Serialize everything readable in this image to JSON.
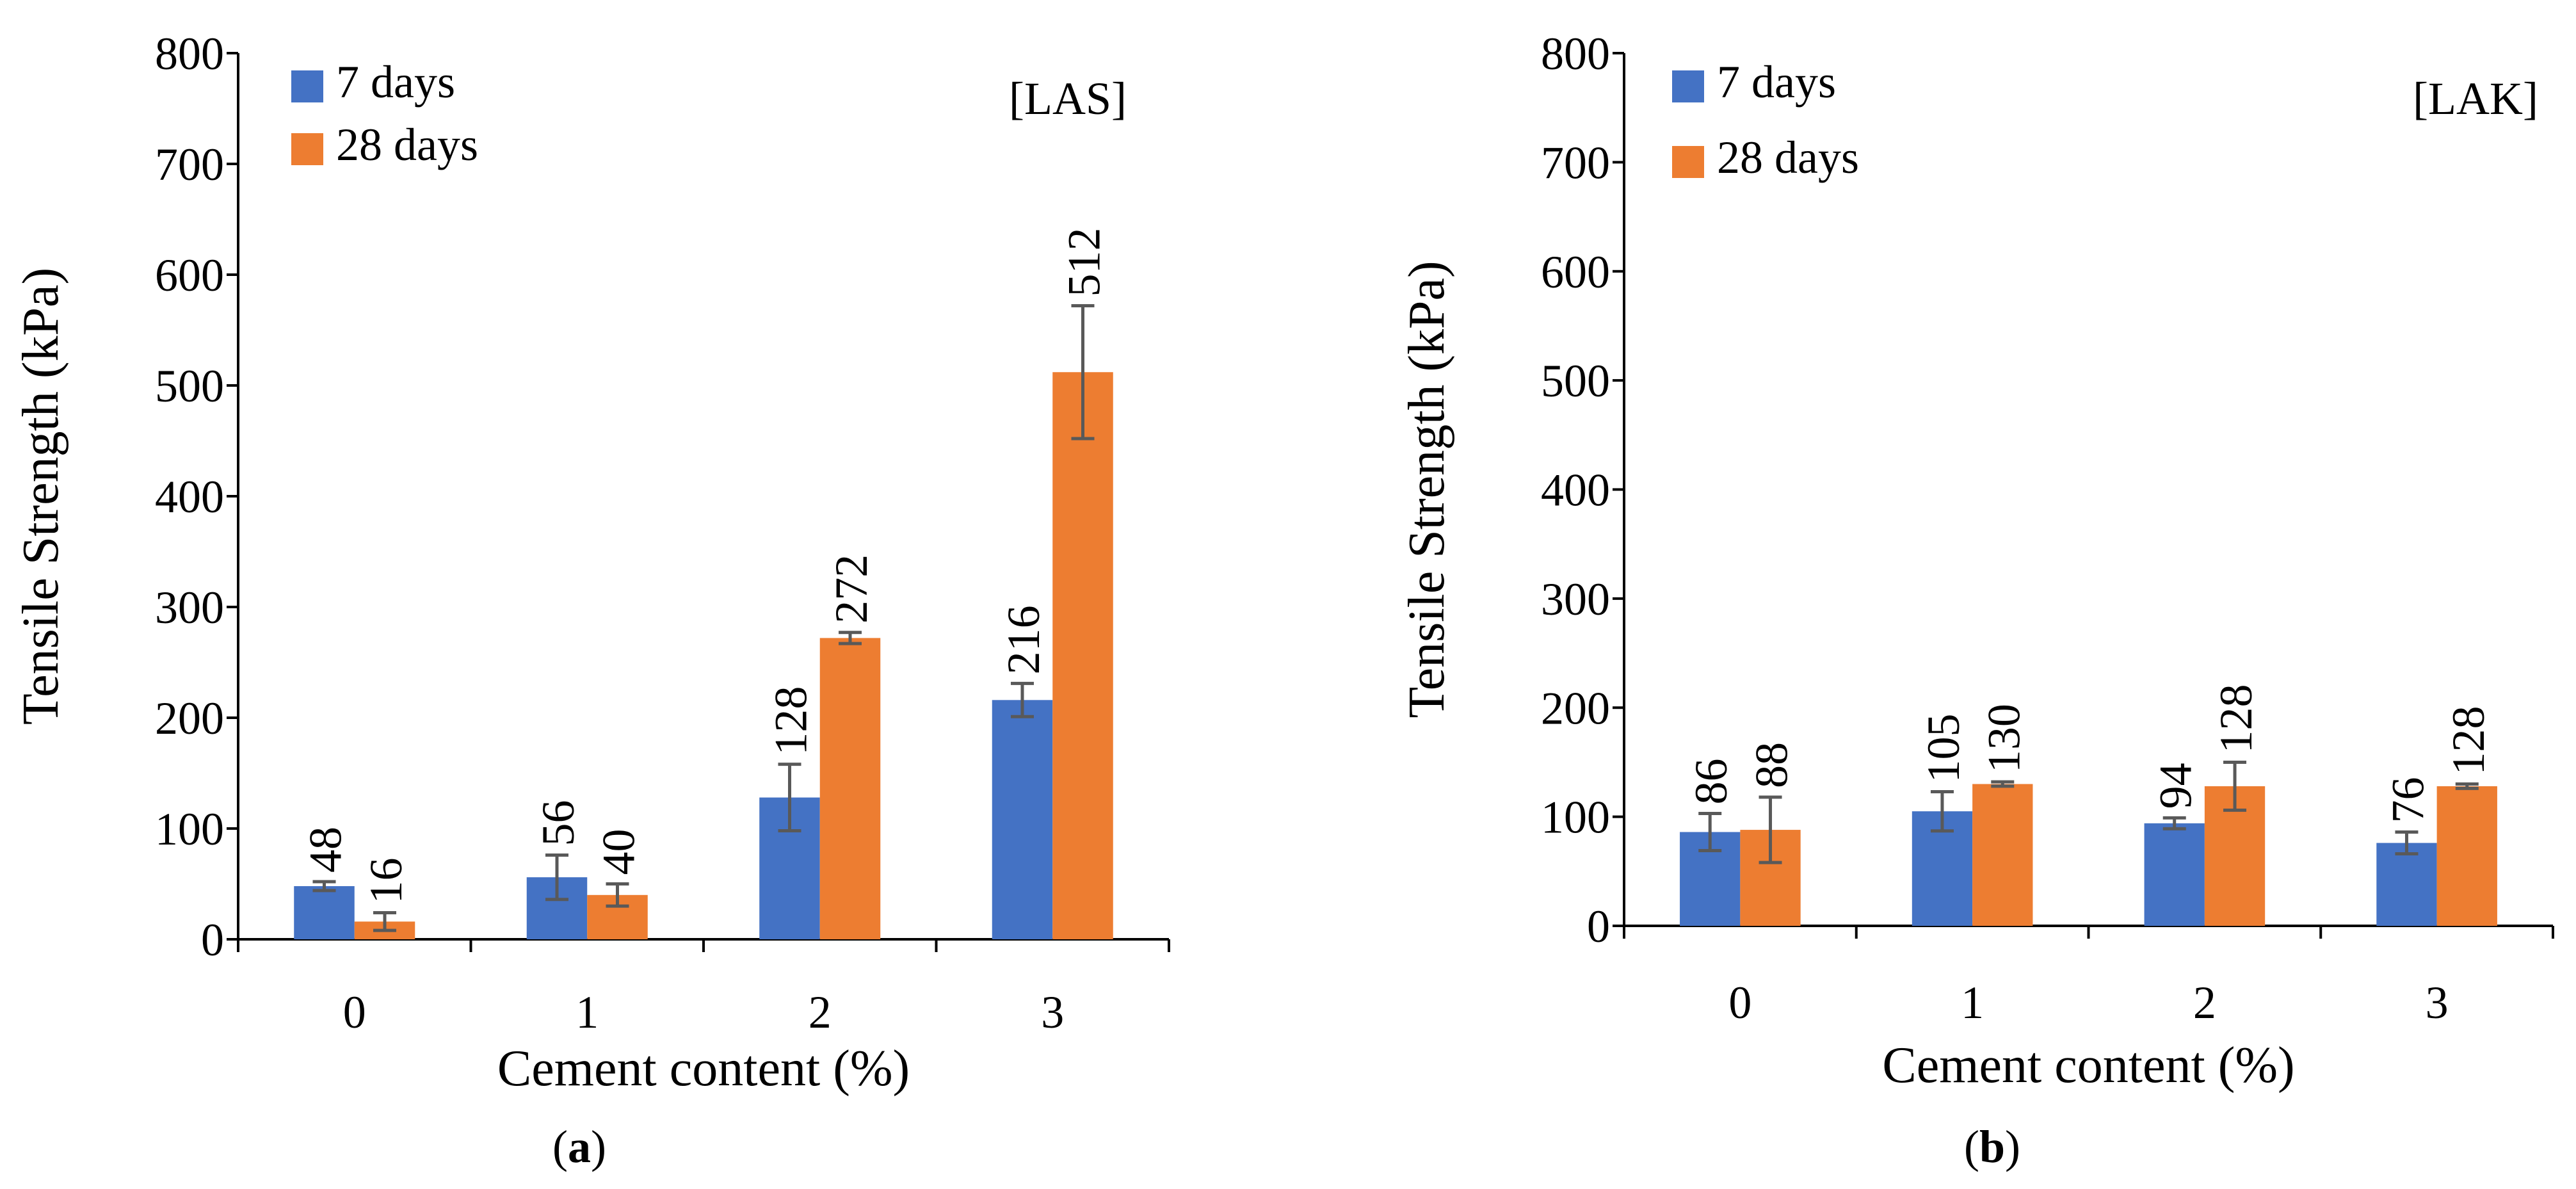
{
  "chart_data": [
    {
      "type": "bar",
      "panel": "a",
      "caption_letter": "a",
      "tag": "[LAS]",
      "xlabel": "Cement content (%)",
      "ylabel": "Tensile Strength (kPa)",
      "ylim": [
        0,
        800
      ],
      "ytick_step": 100,
      "yticks": [
        "0",
        "100",
        "200",
        "300",
        "400",
        "500",
        "600",
        "700",
        "800"
      ],
      "categories": [
        "0",
        "1",
        "2",
        "3"
      ],
      "legend_position": "top-left",
      "series": [
        {
          "name": "7 days",
          "color": "#4472C4",
          "values": [
            48,
            56,
            128,
            216
          ],
          "errors": [
            4,
            20,
            30,
            15
          ]
        },
        {
          "name": "28 days",
          "color": "#ED7D31",
          "values": [
            16,
            40,
            272,
            512
          ],
          "errors": [
            8,
            10,
            5,
            60
          ]
        }
      ]
    },
    {
      "type": "bar",
      "panel": "b",
      "caption_letter": "b",
      "tag": "[LAK]",
      "xlabel": "Cement content (%)",
      "ylabel": "Tensile Strength (kPa)",
      "ylim": [
        0,
        800
      ],
      "ytick_step": 100,
      "yticks": [
        "0",
        "100",
        "200",
        "300",
        "400",
        "500",
        "600",
        "700",
        "800"
      ],
      "categories": [
        "0",
        "1",
        "2",
        "3"
      ],
      "legend_position": "top-left",
      "series": [
        {
          "name": "7 days",
          "color": "#4472C4",
          "values": [
            86,
            105,
            94,
            76
          ],
          "errors": [
            17,
            18,
            5,
            10
          ]
        },
        {
          "name": "28 days",
          "color": "#ED7D31",
          "values": [
            88,
            130,
            128,
            128
          ],
          "errors": [
            30,
            2,
            22,
            2
          ]
        }
      ]
    }
  ],
  "style": {
    "axis_color": "#000000",
    "error_bar_color": "#595959",
    "text_color": "#000000"
  }
}
